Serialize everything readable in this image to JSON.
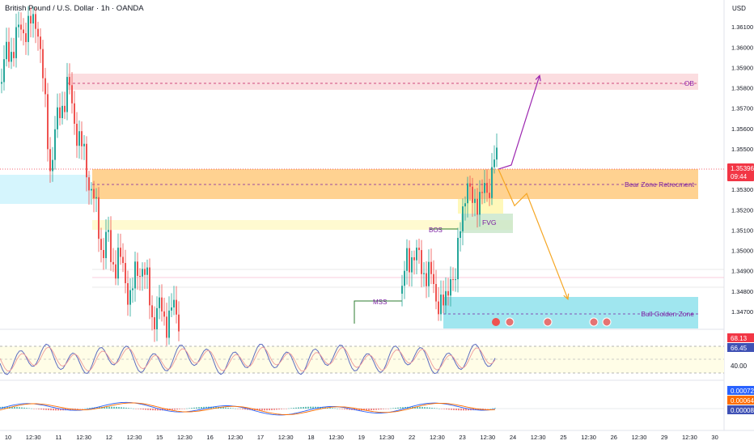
{
  "header": {
    "title": "British Pound / U.S. Dollar · 1h · OANDA",
    "currency": "USD"
  },
  "price_axis": {
    "ticks": [
      "1.36100",
      "1.36000",
      "1.35900",
      "1.35800",
      "1.35700",
      "1.35600",
      "1.35500",
      "1.35400",
      "1.35300",
      "1.35200",
      "1.35100",
      "1.35000",
      "1.34900",
      "1.34800",
      "1.34700"
    ],
    "last_price": "1.35396",
    "countdown": "09:44"
  },
  "time_axis": {
    "labels": [
      "10",
      "12:30",
      "11",
      "12:30",
      "12",
      "12:30",
      "15",
      "12:30",
      "16",
      "12:30",
      "17",
      "12:30",
      "18",
      "12:30",
      "19",
      "12:30",
      "22",
      "12:30",
      "23",
      "12:30",
      "24",
      "12:30",
      "25",
      "12:30",
      "26",
      "12:30",
      "29",
      "12:30",
      "30"
    ]
  },
  "zones": {
    "ob": "-OB",
    "bear": "Bear Zone Retrecment",
    "bull": "Bull Golden Zone",
    "fvg": "FVG",
    "bos": "BOS",
    "mss": "MSS"
  },
  "rsi_pane": {
    "labels": [
      "68.13",
      "66.45",
      "40.00"
    ]
  },
  "macd_pane": {
    "labels": [
      "0.00072",
      "0.00064",
      "0.00008"
    ]
  },
  "colors": {
    "up": "#26a69a",
    "down": "#ef5350",
    "ob_zone": "#f8c6cc",
    "bear_zone": "#ffb74d",
    "bull_zone": "#80deea",
    "purple_path": "#9c27b0",
    "orange_path": "#f5a623",
    "last_price": "#f23645"
  },
  "chart_data": {
    "type": "candlestick",
    "symbol": "GBPUSD",
    "timeframe": "1h",
    "ylim": [
      1.3462,
      1.362
    ],
    "close_path": [
      [
        0,
        1.3582
      ],
      [
        8,
        1.3595
      ],
      [
        16,
        1.3601
      ],
      [
        24,
        1.3607
      ],
      [
        32,
        1.3611
      ],
      [
        40,
        1.3609
      ],
      [
        46,
        1.3616
      ],
      [
        50,
        1.3598
      ],
      [
        56,
        1.3568
      ],
      [
        62,
        1.3542
      ],
      [
        70,
        1.3561
      ],
      [
        78,
        1.3574
      ],
      [
        84,
        1.3582
      ],
      [
        90,
        1.3567
      ],
      [
        96,
        1.3559
      ],
      [
        102,
        1.3548
      ],
      [
        108,
        1.3538
      ],
      [
        114,
        1.353
      ],
      [
        120,
        1.3514
      ],
      [
        126,
        1.35
      ],
      [
        132,
        1.3508
      ],
      [
        138,
        1.3492
      ],
      [
        146,
        1.3498
      ],
      [
        154,
        1.3486
      ],
      [
        162,
        1.3478
      ],
      [
        170,
        1.349
      ],
      [
        176,
        1.3494
      ],
      [
        182,
        1.3482
      ],
      [
        188,
        1.3468
      ],
      [
        196,
        1.3471
      ],
      [
        204,
        1.3466
      ],
      [
        212,
        1.347
      ],
      [
        220,
        1.3468
      ],
      [
        236,
        1.3471
      ],
      [
        260,
        1.3474
      ],
      [
        290,
        1.3475
      ],
      [
        320,
        1.3473
      ],
      [
        360,
        1.3472
      ],
      [
        400,
        1.3474
      ],
      [
        438,
        1.3476
      ],
      [
        470,
        1.3477
      ],
      [
        490,
        1.3477
      ],
      [
        497,
        1.348
      ],
      [
        503,
        1.3494
      ],
      [
        510,
        1.35
      ],
      [
        516,
        1.3495
      ],
      [
        522,
        1.3492
      ],
      [
        528,
        1.3489
      ],
      [
        534,
        1.3484
      ],
      [
        540,
        1.3478
      ],
      [
        546,
        1.3472
      ],
      [
        550,
        1.347
      ],
      [
        554,
        1.3484
      ],
      [
        558,
        1.3493
      ],
      [
        562,
        1.3478
      ],
      [
        566,
        1.3498
      ],
      [
        570,
        1.3521
      ],
      [
        576,
        1.353
      ],
      [
        582,
        1.3524
      ],
      [
        588,
        1.3528
      ],
      [
        594,
        1.3522
      ],
      [
        600,
        1.3531
      ],
      [
        606,
        1.3534
      ],
      [
        612,
        1.3545
      ],
      [
        616,
        1.354
      ]
    ],
    "projections": [
      {
        "name": "bullish",
        "path": [
          [
            616,
            1.354
          ],
          [
            632,
            1.3542
          ],
          [
            651,
            1.3566
          ],
          [
            667,
            1.3586
          ]
        ]
      },
      {
        "name": "bearish",
        "path": [
          [
            616,
            1.354
          ],
          [
            636,
            1.3522
          ],
          [
            651,
            1.3528
          ],
          [
            702,
            1.3476
          ]
        ]
      }
    ],
    "levels": [
      {
        "label": "-OB",
        "from": 1.3578,
        "to": 1.3587
      },
      {
        "label": "Bear Zone Retrecment",
        "from": 1.3524,
        "to": 1.3538
      },
      {
        "label": "FVG",
        "from": 1.351,
        "to": 1.3518
      },
      {
        "label": "Bull Golden Zone",
        "from": 1.3463,
        "to": 1.3477
      }
    ],
    "last_price": 1.35396,
    "rsi": {
      "current": [
        68.13,
        66.45
      ],
      "level": 40.0
    },
    "macd": {
      "values": [
        0.00072,
        0.00064,
        8e-05
      ]
    }
  }
}
